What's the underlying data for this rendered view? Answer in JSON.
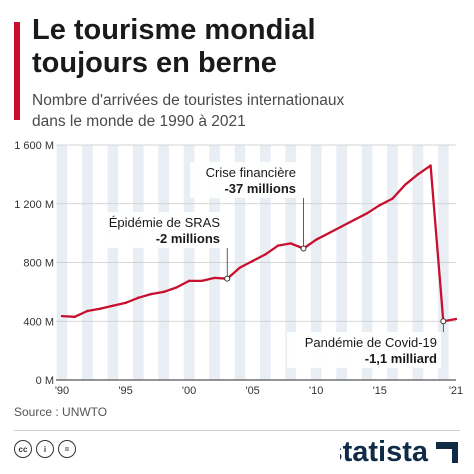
{
  "header": {
    "title_line1": "Le tourisme mondial",
    "title_line2": "toujours en berne",
    "subtitle_line1": "Nombre d'arrivées de touristes internationaux",
    "subtitle_line2": "dans le monde de 1990 à 2021"
  },
  "footer": {
    "source": "Source : UNWTO",
    "brand": "statista"
  },
  "colors": {
    "line": "#c8102e",
    "accent": "#c8102e",
    "stripes": "#e9eef4",
    "brand": "#0f2b46"
  },
  "icons": [
    "cc-icon",
    "info-icon",
    "equals-icon"
  ],
  "chart_data": {
    "type": "line",
    "x": [
      1990,
      1991,
      1992,
      1993,
      1994,
      1995,
      1996,
      1997,
      1998,
      1999,
      2000,
      2001,
      2002,
      2003,
      2004,
      2005,
      2006,
      2007,
      2008,
      2009,
      2010,
      2011,
      2012,
      2013,
      2014,
      2015,
      2016,
      2017,
      2018,
      2019,
      2020,
      2021
    ],
    "series": [
      {
        "values": [
          435,
          430,
          470,
          485,
          505,
          525,
          560,
          585,
          600,
          630,
          675,
          675,
          695,
          690,
          765,
          810,
          855,
          915,
          930,
          895,
          955,
          1000,
          1045,
          1090,
          1135,
          1190,
          1235,
          1330,
          1400,
          1460,
          400,
          415
        ]
      }
    ],
    "ylim": [
      0,
      1600
    ],
    "yticks": [
      0,
      400,
      800,
      1200,
      1600
    ],
    "ytick_labels": [
      "0 M",
      "400 M",
      "800 M",
      "1 200 M",
      "1 600 M"
    ],
    "xticks": [
      1990,
      1995,
      2000,
      2005,
      2010,
      2015,
      2021
    ],
    "xtick_labels": [
      "'90",
      "'95",
      "'00",
      "'05",
      "'10",
      "'15",
      "'21"
    ],
    "grid": true,
    "annotations": [
      {
        "year": 2003,
        "value": 690,
        "line1": "Épidémie de SRAS",
        "line2": "-2 millions"
      },
      {
        "year": 2009,
        "value": 895,
        "line1": "Crise financière",
        "line2": "-37 millions"
      },
      {
        "year": 2020,
        "value": 400,
        "line1": "Pandémie de Covid-19",
        "line2": "-1,1 milliard"
      }
    ]
  }
}
